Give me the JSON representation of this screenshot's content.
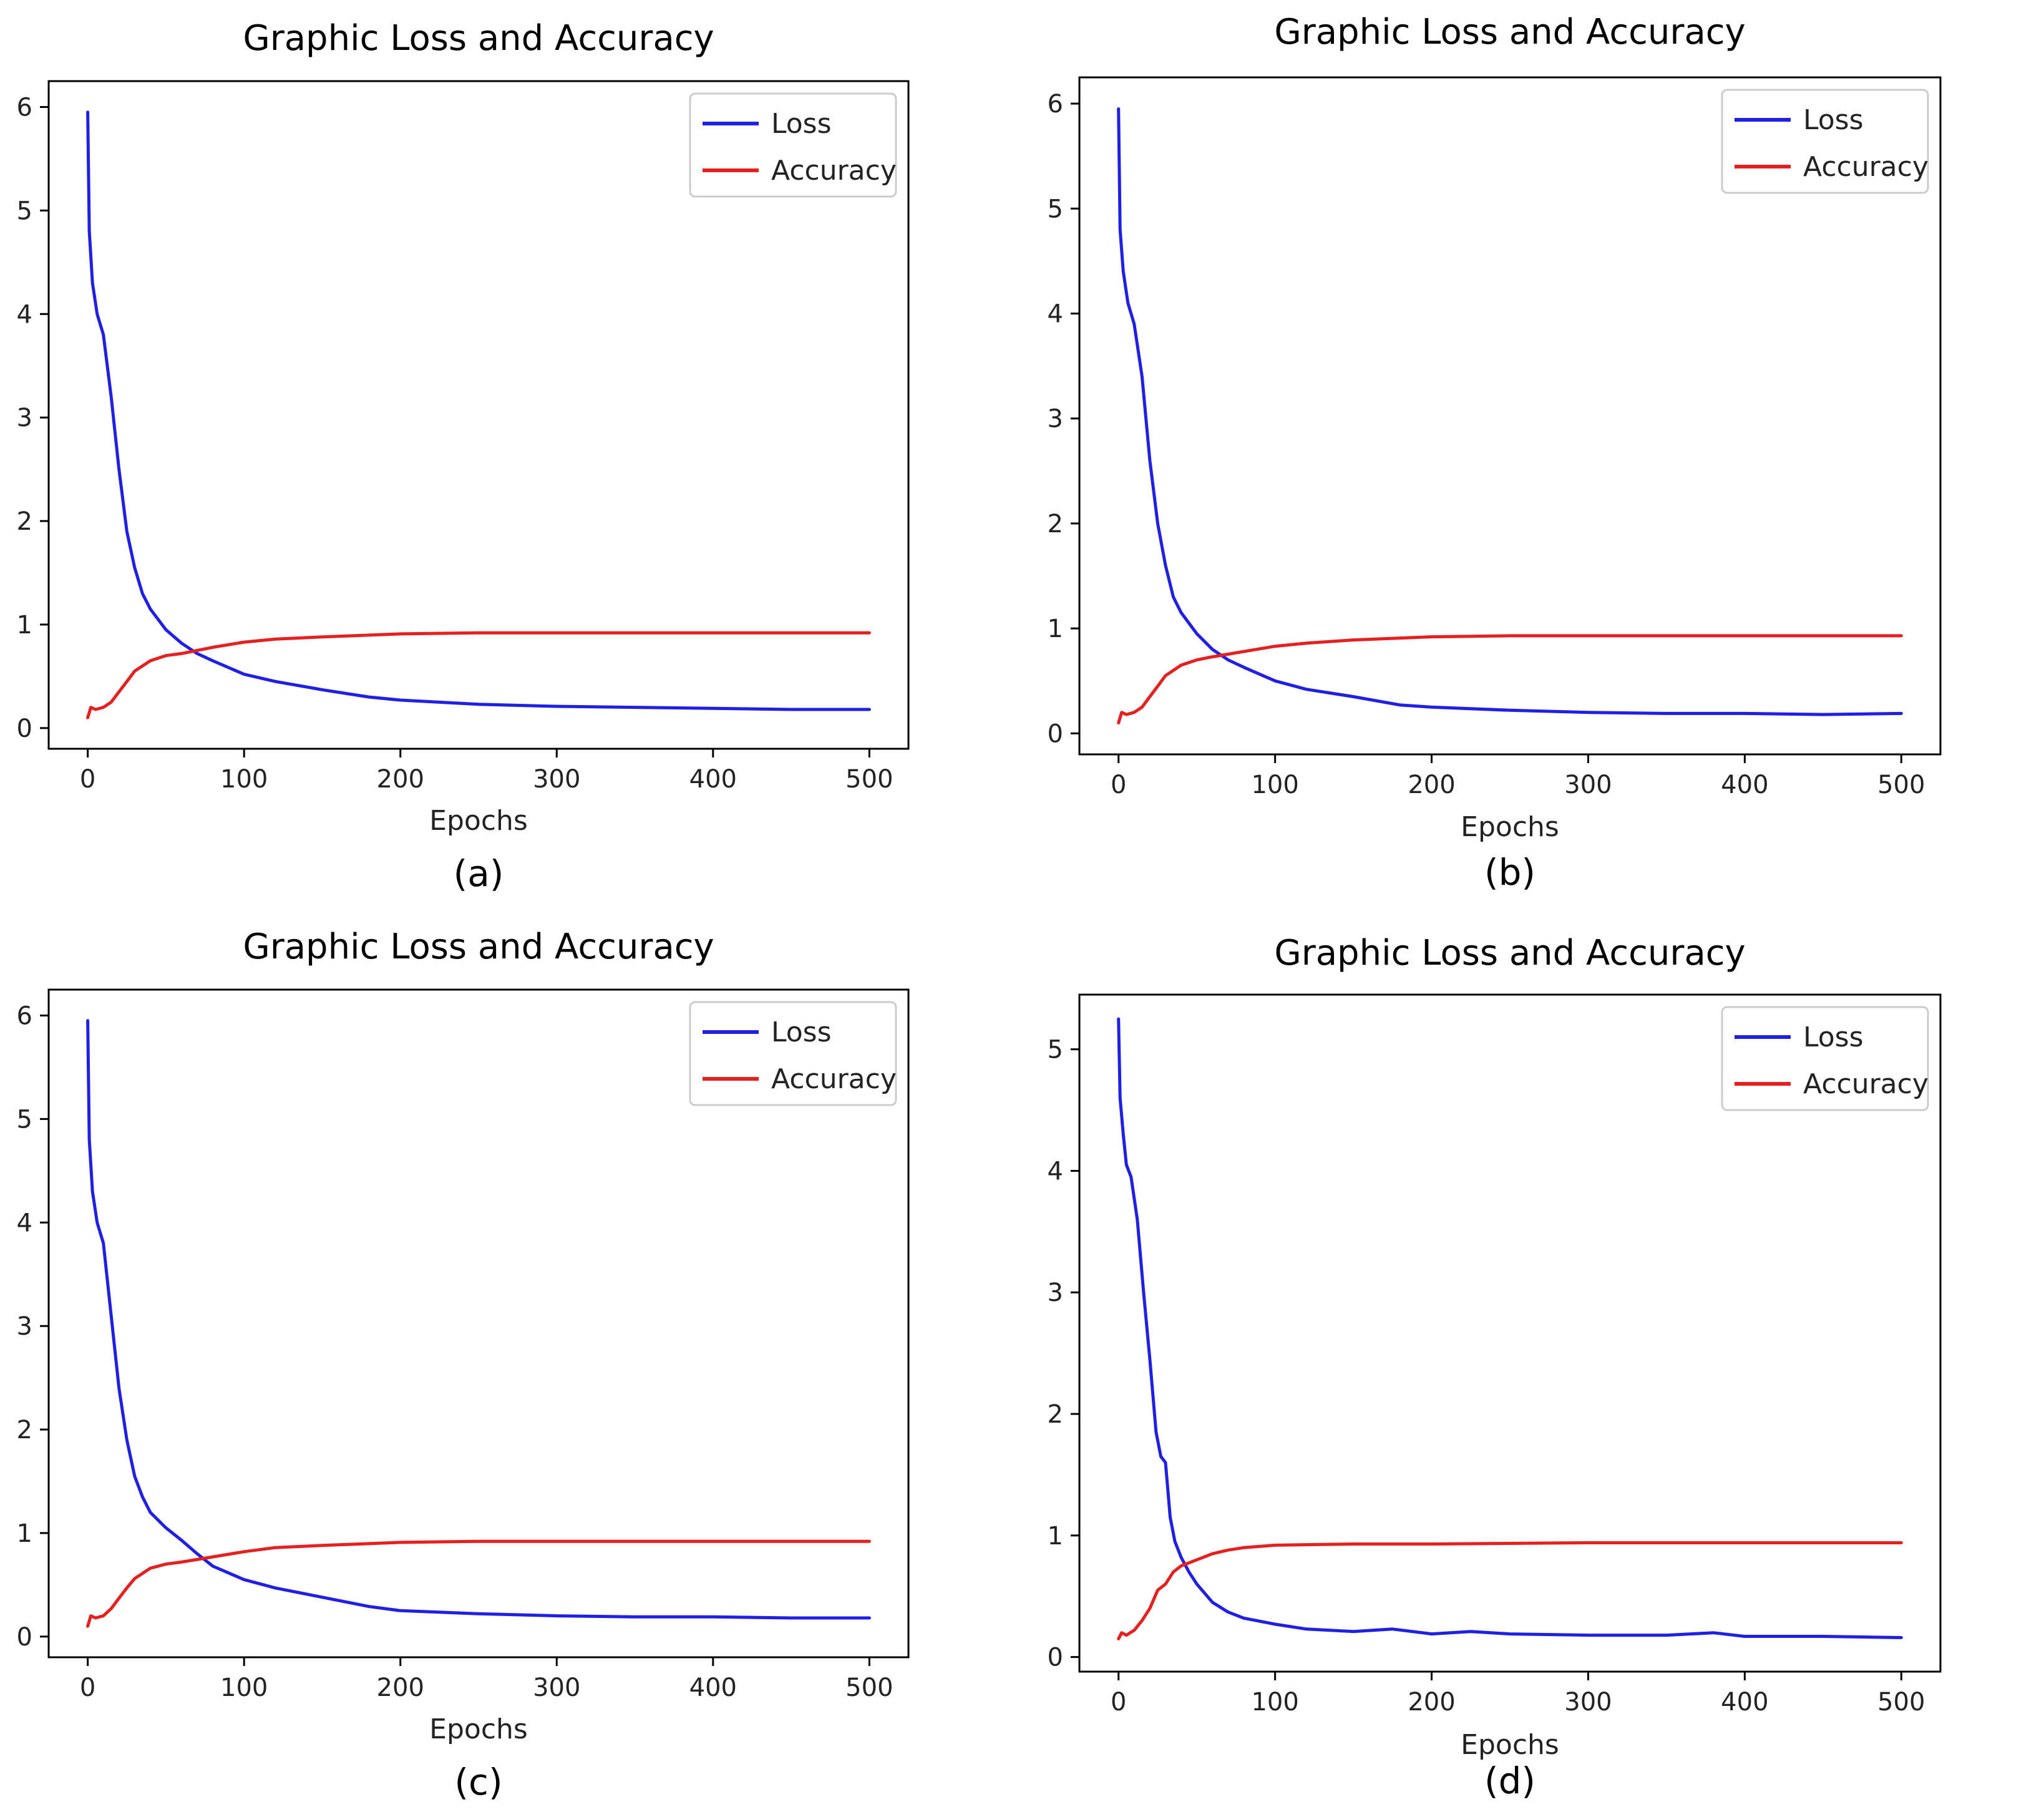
{
  "figure": {
    "panels": [
      {
        "title": "Graphic Loss and Accuracy",
        "xlabel": "Epochs",
        "caption": "(a)"
      },
      {
        "title": "Graphic Loss and Accuracy",
        "xlabel": "Epochs",
        "caption": "(b)"
      },
      {
        "title": "Graphic Loss and Accuracy",
        "xlabel": "Epochs",
        "caption": "(c)"
      },
      {
        "title": "Graphic Loss and Accuracy",
        "xlabel": "Epochs",
        "caption": "(d)"
      }
    ]
  },
  "chart_data": [
    {
      "type": "line",
      "title": "Graphic Loss and Accuracy",
      "xlabel": "Epochs",
      "ylabel": "",
      "caption": "(a)",
      "xlim": [
        -25,
        525
      ],
      "ylim": [
        -0.2,
        6.25
      ],
      "xticks": [
        0,
        100,
        200,
        300,
        400,
        500
      ],
      "yticks": [
        0,
        1,
        2,
        3,
        4,
        5,
        6
      ],
      "legend": {
        "position": "top-right",
        "entries": [
          "Loss",
          "Accuracy"
        ]
      },
      "colors": {
        "Loss": "#1f1fe6",
        "Accuracy": "#e61f1f"
      },
      "series": [
        {
          "name": "Loss",
          "x": [
            0,
            1,
            3,
            6,
            10,
            15,
            20,
            25,
            30,
            35,
            40,
            50,
            60,
            70,
            80,
            100,
            120,
            150,
            180,
            200,
            250,
            300,
            350,
            400,
            450,
            500
          ],
          "y": [
            5.95,
            4.8,
            4.3,
            4.0,
            3.8,
            3.2,
            2.5,
            1.9,
            1.55,
            1.3,
            1.15,
            0.95,
            0.82,
            0.72,
            0.65,
            0.52,
            0.45,
            0.37,
            0.3,
            0.27,
            0.23,
            0.21,
            0.2,
            0.19,
            0.18,
            0.18
          ]
        },
        {
          "name": "Accuracy",
          "x": [
            0,
            2,
            5,
            10,
            15,
            20,
            25,
            30,
            40,
            50,
            60,
            80,
            100,
            120,
            150,
            200,
            250,
            300,
            400,
            500
          ],
          "y": [
            0.1,
            0.2,
            0.18,
            0.2,
            0.25,
            0.35,
            0.45,
            0.55,
            0.65,
            0.7,
            0.72,
            0.78,
            0.83,
            0.86,
            0.88,
            0.91,
            0.92,
            0.92,
            0.92,
            0.92
          ]
        }
      ]
    },
    {
      "type": "line",
      "title": "Graphic Loss and Accuracy",
      "xlabel": "Epochs",
      "ylabel": "",
      "caption": "(b)",
      "xlim": [
        -25,
        525
      ],
      "ylim": [
        -0.2,
        6.25
      ],
      "xticks": [
        0,
        100,
        200,
        300,
        400,
        500
      ],
      "yticks": [
        0,
        1,
        2,
        3,
        4,
        5,
        6
      ],
      "legend": {
        "position": "top-right",
        "entries": [
          "Loss",
          "Accuracy"
        ]
      },
      "colors": {
        "Loss": "#1f1fe6",
        "Accuracy": "#e61f1f"
      },
      "series": [
        {
          "name": "Loss",
          "x": [
            0,
            1,
            3,
            6,
            10,
            15,
            20,
            25,
            30,
            35,
            40,
            50,
            60,
            70,
            80,
            100,
            120,
            150,
            180,
            200,
            250,
            300,
            350,
            400,
            450,
            500
          ],
          "y": [
            5.95,
            4.8,
            4.4,
            4.1,
            3.9,
            3.4,
            2.6,
            2.0,
            1.6,
            1.3,
            1.15,
            0.95,
            0.8,
            0.7,
            0.63,
            0.5,
            0.42,
            0.35,
            0.27,
            0.25,
            0.22,
            0.2,
            0.19,
            0.19,
            0.18,
            0.19
          ]
        },
        {
          "name": "Accuracy",
          "x": [
            0,
            2,
            5,
            10,
            15,
            20,
            25,
            30,
            40,
            50,
            60,
            80,
            100,
            120,
            150,
            200,
            250,
            300,
            400,
            500
          ],
          "y": [
            0.1,
            0.2,
            0.18,
            0.2,
            0.25,
            0.35,
            0.45,
            0.55,
            0.65,
            0.7,
            0.73,
            0.78,
            0.83,
            0.86,
            0.89,
            0.92,
            0.93,
            0.93,
            0.93,
            0.93
          ]
        }
      ]
    },
    {
      "type": "line",
      "title": "Graphic Loss and Accuracy",
      "xlabel": "Epochs",
      "ylabel": "",
      "caption": "(c)",
      "xlim": [
        -25,
        525
      ],
      "ylim": [
        -0.2,
        6.25
      ],
      "xticks": [
        0,
        100,
        200,
        300,
        400,
        500
      ],
      "yticks": [
        0,
        1,
        2,
        3,
        4,
        5,
        6
      ],
      "legend": {
        "position": "top-right",
        "entries": [
          "Loss",
          "Accuracy"
        ]
      },
      "colors": {
        "Loss": "#1f1fe6",
        "Accuracy": "#e61f1f"
      },
      "series": [
        {
          "name": "Loss",
          "x": [
            0,
            1,
            3,
            6,
            10,
            15,
            20,
            25,
            30,
            35,
            40,
            50,
            60,
            70,
            80,
            100,
            120,
            150,
            180,
            200,
            250,
            300,
            350,
            400,
            450,
            500
          ],
          "y": [
            5.95,
            4.8,
            4.3,
            4.0,
            3.8,
            3.1,
            2.4,
            1.9,
            1.55,
            1.35,
            1.2,
            1.05,
            0.93,
            0.8,
            0.68,
            0.55,
            0.47,
            0.38,
            0.29,
            0.25,
            0.22,
            0.2,
            0.19,
            0.19,
            0.18,
            0.18
          ]
        },
        {
          "name": "Accuracy",
          "x": [
            0,
            2,
            5,
            10,
            15,
            20,
            25,
            30,
            40,
            50,
            60,
            80,
            100,
            120,
            150,
            200,
            250,
            300,
            400,
            500
          ],
          "y": [
            0.1,
            0.2,
            0.18,
            0.2,
            0.27,
            0.37,
            0.47,
            0.56,
            0.66,
            0.7,
            0.72,
            0.77,
            0.82,
            0.86,
            0.88,
            0.91,
            0.92,
            0.92,
            0.92,
            0.92
          ]
        }
      ]
    },
    {
      "type": "line",
      "title": "Graphic Loss and Accuracy",
      "xlabel": "Epochs",
      "ylabel": "",
      "caption": "(d)",
      "xlim": [
        -25,
        525
      ],
      "ylim": [
        -0.12,
        5.45
      ],
      "xticks": [
        0,
        100,
        200,
        300,
        400,
        500
      ],
      "yticks": [
        0,
        1,
        2,
        3,
        4,
        5
      ],
      "legend": {
        "position": "top-right",
        "entries": [
          "Loss",
          "Accuracy"
        ]
      },
      "colors": {
        "Loss": "#1f1fe6",
        "Accuracy": "#e61f1f"
      },
      "series": [
        {
          "name": "Loss",
          "x": [
            0,
            1,
            3,
            5,
            8,
            12,
            16,
            20,
            24,
            27,
            30,
            33,
            36,
            40,
            45,
            50,
            60,
            70,
            80,
            100,
            120,
            150,
            175,
            200,
            225,
            250,
            300,
            350,
            380,
            400,
            450,
            500
          ],
          "y": [
            5.25,
            4.6,
            4.3,
            4.05,
            3.95,
            3.6,
            3.0,
            2.45,
            1.85,
            1.65,
            1.6,
            1.15,
            0.95,
            0.82,
            0.7,
            0.6,
            0.45,
            0.37,
            0.32,
            0.27,
            0.23,
            0.21,
            0.23,
            0.19,
            0.21,
            0.19,
            0.18,
            0.18,
            0.2,
            0.17,
            0.17,
            0.16
          ]
        },
        {
          "name": "Accuracy",
          "x": [
            0,
            2,
            5,
            10,
            15,
            20,
            25,
            30,
            35,
            40,
            50,
            60,
            70,
            80,
            100,
            150,
            200,
            300,
            400,
            500
          ],
          "y": [
            0.15,
            0.2,
            0.18,
            0.22,
            0.3,
            0.4,
            0.55,
            0.6,
            0.7,
            0.75,
            0.8,
            0.85,
            0.88,
            0.9,
            0.92,
            0.93,
            0.93,
            0.94,
            0.94,
            0.94
          ]
        }
      ]
    }
  ]
}
